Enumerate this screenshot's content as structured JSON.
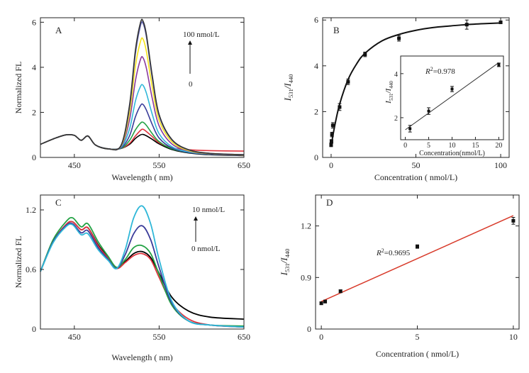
{
  "chart_data": [
    {
      "panel": "A",
      "type": "line",
      "xlabel": "Wavelength ( nm)",
      "ylabel": "Normalized  FL",
      "xlim": [
        410,
        650
      ],
      "ylim": [
        0,
        6.2
      ],
      "xticks": [
        450,
        550,
        650
      ],
      "yticks": [
        0,
        2,
        4,
        6
      ],
      "annotation_top": "100 nmol/L",
      "annotation_bottom": "0",
      "series": [
        {
          "color": "#000000",
          "x": [
            410,
            425,
            440,
            450,
            458,
            466,
            475,
            490,
            505,
            515,
            522,
            528,
            531,
            535,
            542,
            550,
            565,
            585,
            610,
            650
          ],
          "y": [
            0.58,
            0.82,
            1.0,
            0.98,
            0.76,
            0.95,
            0.55,
            0.38,
            0.4,
            0.58,
            0.84,
            1.0,
            1.02,
            0.96,
            0.8,
            0.6,
            0.35,
            0.2,
            0.12,
            0.08
          ]
        },
        {
          "color": "#e0343e",
          "x": [
            410,
            425,
            440,
            450,
            458,
            466,
            475,
            490,
            505,
            515,
            522,
            528,
            531,
            535,
            542,
            550,
            565,
            585,
            610,
            650
          ],
          "y": [
            0.58,
            0.82,
            1.0,
            0.98,
            0.76,
            0.95,
            0.55,
            0.38,
            0.4,
            0.62,
            0.95,
            1.2,
            1.25,
            1.15,
            0.92,
            0.65,
            0.42,
            0.34,
            0.3,
            0.28
          ]
        },
        {
          "color": "#23a244",
          "x": [
            410,
            425,
            440,
            450,
            458,
            466,
            475,
            490,
            505,
            515,
            522,
            528,
            531,
            535,
            542,
            550,
            565,
            585,
            610,
            650
          ],
          "y": [
            0.58,
            0.82,
            1.0,
            0.98,
            0.76,
            0.95,
            0.55,
            0.38,
            0.4,
            0.75,
            1.22,
            1.52,
            1.56,
            1.42,
            1.05,
            0.7,
            0.38,
            0.22,
            0.14,
            0.1
          ]
        },
        {
          "color": "#3a3c9a",
          "x": [
            410,
            425,
            440,
            450,
            458,
            466,
            475,
            490,
            505,
            515,
            522,
            528,
            531,
            535,
            542,
            550,
            565,
            585,
            610,
            650
          ],
          "y": [
            0.58,
            0.82,
            1.0,
            0.98,
            0.76,
            0.95,
            0.55,
            0.38,
            0.42,
            0.95,
            1.8,
            2.3,
            2.35,
            2.1,
            1.45,
            0.86,
            0.42,
            0.22,
            0.14,
            0.1
          ]
        },
        {
          "color": "#2fb7d8",
          "x": [
            410,
            425,
            440,
            450,
            458,
            466,
            475,
            490,
            505,
            515,
            522,
            528,
            531,
            535,
            542,
            550,
            565,
            585,
            610,
            650
          ],
          "y": [
            0.58,
            0.82,
            1.0,
            0.98,
            0.76,
            0.95,
            0.55,
            0.38,
            0.45,
            1.25,
            2.5,
            3.15,
            3.2,
            2.85,
            1.9,
            1.05,
            0.48,
            0.24,
            0.15,
            0.1
          ]
        },
        {
          "color": "#8a3a9c",
          "x": [
            410,
            425,
            440,
            450,
            458,
            466,
            475,
            490,
            505,
            515,
            522,
            528,
            531,
            535,
            542,
            550,
            565,
            585,
            610,
            650
          ],
          "y": [
            0.58,
            0.82,
            1.0,
            0.98,
            0.76,
            0.95,
            0.55,
            0.38,
            0.48,
            1.65,
            3.4,
            4.35,
            4.42,
            3.95,
            2.6,
            1.4,
            0.6,
            0.28,
            0.16,
            0.1
          ]
        },
        {
          "color": "#f5e21a",
          "x": [
            410,
            425,
            440,
            450,
            458,
            466,
            475,
            490,
            505,
            515,
            522,
            528,
            531,
            535,
            542,
            550,
            565,
            585,
            610,
            650
          ],
          "y": [
            0.58,
            0.82,
            1.0,
            0.98,
            0.76,
            0.95,
            0.55,
            0.38,
            0.5,
            1.95,
            4.05,
            5.15,
            5.25,
            4.7,
            3.1,
            1.65,
            0.7,
            0.3,
            0.17,
            0.11
          ]
        },
        {
          "color": "#5b5fb0",
          "x": [
            410,
            425,
            440,
            450,
            458,
            466,
            475,
            490,
            505,
            515,
            522,
            528,
            531,
            535,
            542,
            550,
            565,
            585,
            610,
            650
          ],
          "y": [
            0.58,
            0.82,
            1.0,
            0.98,
            0.76,
            0.95,
            0.55,
            0.38,
            0.52,
            2.2,
            4.6,
            5.85,
            5.95,
            5.35,
            3.5,
            1.85,
            0.78,
            0.33,
            0.18,
            0.12
          ]
        },
        {
          "color": "#333333",
          "x": [
            410,
            425,
            440,
            450,
            458,
            466,
            475,
            490,
            505,
            515,
            522,
            528,
            531,
            535,
            542,
            550,
            565,
            585,
            610,
            650
          ],
          "y": [
            0.58,
            0.82,
            1.0,
            0.98,
            0.76,
            0.95,
            0.55,
            0.38,
            0.53,
            2.3,
            4.75,
            5.98,
            6.05,
            5.45,
            3.6,
            1.9,
            0.8,
            0.34,
            0.18,
            0.12
          ]
        }
      ]
    },
    {
      "panel": "B",
      "type": "scatter",
      "xlabel": "Concentration ( nmol/L)",
      "ylabel_main": "I",
      "ylabel_sub1": "531",
      "ylabel_sep": "/",
      "ylabel_sub2": "440",
      "xlim": [
        -5,
        105
      ],
      "ylim": [
        0,
        6.1
      ],
      "xticks": [
        0,
        50,
        100
      ],
      "yticks": [
        0,
        2,
        4,
        6
      ],
      "points": {
        "x": [
          0,
          0.2,
          0.5,
          1,
          5,
          10,
          20,
          40,
          80,
          100
        ],
        "y": [
          0.55,
          0.7,
          1.0,
          1.4,
          2.2,
          3.3,
          4.5,
          5.2,
          5.8,
          5.9
        ],
        "err": [
          0.08,
          0.08,
          0.1,
          0.12,
          0.15,
          0.12,
          0.1,
          0.12,
          0.2,
          0.05
        ]
      },
      "fit": {
        "x": [
          0,
          2,
          5,
          10,
          15,
          20,
          30,
          40,
          50,
          60,
          70,
          80,
          90,
          100
        ],
        "y": [
          0.5,
          1.33,
          2.32,
          3.4,
          4.08,
          4.55,
          5.09,
          5.37,
          5.55,
          5.67,
          5.74,
          5.8,
          5.84,
          5.87
        ]
      },
      "inset": {
        "xlabel": "Concentration(nmol/L)",
        "ylabel_main": "I",
        "ylabel_sub1": "531",
        "ylabel_sep": "/",
        "ylabel_sub2": "440",
        "r2_prefix": "R",
        "r2_sup": "2",
        "r2_value": "=0.978",
        "xlim": [
          -1,
          21
        ],
        "ylim": [
          1.0,
          4.8
        ],
        "xticks": [
          0,
          5,
          10,
          15,
          20
        ],
        "yticks": [
          2,
          4
        ],
        "points": {
          "x": [
            1,
            5,
            10,
            20
          ],
          "y": [
            1.5,
            2.3,
            3.3,
            4.4
          ],
          "err": [
            0.15,
            0.15,
            0.12,
            0.08
          ]
        },
        "fit": {
          "x": [
            0,
            20
          ],
          "y": [
            1.45,
            4.5
          ]
        }
      }
    },
    {
      "panel": "C",
      "type": "line",
      "xlabel": "Wavelength ( nm)",
      "ylabel": "Normalized  FL",
      "xlim": [
        410,
        650
      ],
      "ylim": [
        0,
        1.35
      ],
      "xticks": [
        450,
        550,
        650
      ],
      "yticks": [
        0,
        0.6,
        1.2
      ],
      "annotation_top": "10 nmol/L",
      "annotation_bottom": "0 nmol/L",
      "series": [
        {
          "color": "#000000",
          "x": [
            410,
            425,
            440,
            448,
            458,
            466,
            478,
            490,
            500,
            510,
            520,
            530,
            540,
            550,
            565,
            585,
            610,
            650
          ],
          "y": [
            0.58,
            0.88,
            1.05,
            1.08,
            1.0,
            1.02,
            0.85,
            0.72,
            0.62,
            0.68,
            0.76,
            0.78,
            0.72,
            0.56,
            0.32,
            0.18,
            0.12,
            0.1
          ]
        },
        {
          "color": "#e0343e",
          "x": [
            410,
            425,
            440,
            448,
            458,
            466,
            478,
            490,
            500,
            510,
            520,
            530,
            540,
            550,
            565,
            585,
            610,
            650
          ],
          "y": [
            0.58,
            0.88,
            1.05,
            1.08,
            1.0,
            1.02,
            0.84,
            0.71,
            0.61,
            0.67,
            0.74,
            0.76,
            0.7,
            0.52,
            0.26,
            0.1,
            0.04,
            0.02
          ]
        },
        {
          "color": "#23a244",
          "x": [
            410,
            425,
            440,
            448,
            458,
            466,
            478,
            490,
            500,
            510,
            520,
            530,
            540,
            550,
            565,
            585,
            610,
            650
          ],
          "y": [
            0.58,
            0.9,
            1.08,
            1.12,
            1.03,
            1.06,
            0.88,
            0.73,
            0.62,
            0.7,
            0.82,
            0.84,
            0.76,
            0.55,
            0.24,
            0.08,
            0.04,
            0.03
          ]
        },
        {
          "color": "#3a3c9a",
          "x": [
            410,
            425,
            440,
            448,
            458,
            466,
            478,
            490,
            500,
            510,
            520,
            530,
            540,
            550,
            565,
            585,
            610,
            650
          ],
          "y": [
            0.58,
            0.88,
            1.04,
            1.06,
            0.97,
            0.99,
            0.82,
            0.7,
            0.61,
            0.75,
            0.96,
            1.04,
            0.9,
            0.62,
            0.26,
            0.08,
            0.04,
            0.02
          ]
        },
        {
          "color": "#2fb7d8",
          "x": [
            410,
            425,
            440,
            448,
            458,
            466,
            478,
            490,
            500,
            510,
            520,
            530,
            540,
            550,
            565,
            585,
            610,
            650
          ],
          "y": [
            0.58,
            0.87,
            1.03,
            1.05,
            0.95,
            0.96,
            0.8,
            0.69,
            0.61,
            0.8,
            1.12,
            1.24,
            1.06,
            0.7,
            0.28,
            0.08,
            0.04,
            0.02
          ]
        }
      ]
    },
    {
      "panel": "D",
      "type": "scatter",
      "xlabel": "Concentration ( nmol/L)",
      "ylabel_main": "I",
      "ylabel_sub1": "531",
      "ylabel_sep": "/",
      "ylabel_sub2": "440",
      "r2_prefix": "R",
      "r2_sup": "2",
      "r2_value": "=0.9695",
      "xlim": [
        -0.3,
        10.3
      ],
      "ylim": [
        0.6,
        1.38
      ],
      "yticks_display": [
        "0",
        "0.9",
        "1.2"
      ],
      "xticks": [
        0,
        5,
        10
      ],
      "points": {
        "x": [
          0,
          0.2,
          1,
          5,
          10
        ],
        "y": [
          0.75,
          0.76,
          0.82,
          1.08,
          1.23
        ],
        "err": [
          0.008,
          0.008,
          0.008,
          0.01,
          0.02
        ]
      },
      "fit": {
        "x": [
          0,
          10
        ],
        "y": [
          0.76,
          1.26
        ]
      },
      "fit_color": "#d83a2a"
    }
  ]
}
